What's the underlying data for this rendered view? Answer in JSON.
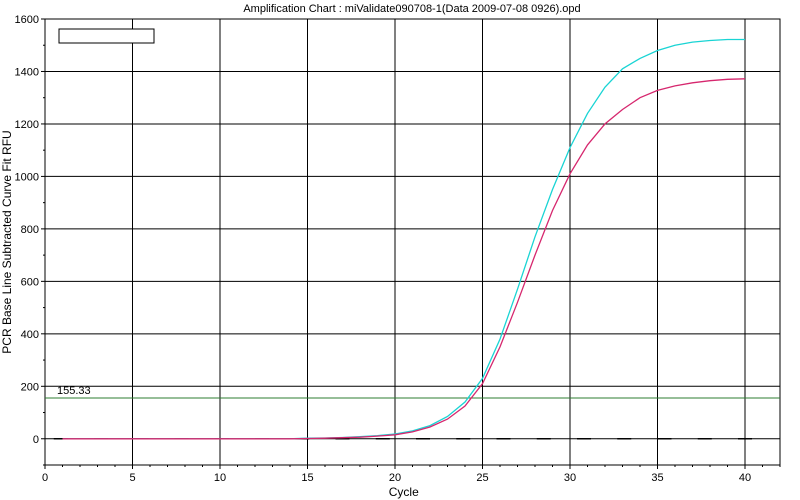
{
  "chart_data": {
    "type": "line",
    "title": "Amplification Chart : miValidate090708-1(Data 2009-07-08 0926).opd",
    "xlabel": "Cycle",
    "ylabel": "PCR Base Line Subtracted Curve Fit RFU",
    "xlim": [
      0,
      42
    ],
    "ylim": [
      -100,
      1600
    ],
    "x_ticks": [
      "0",
      "5",
      "10",
      "15",
      "20",
      "25",
      "30",
      "35",
      "40"
    ],
    "y_ticks": [
      "0",
      "200",
      "400",
      "600",
      "800",
      "1000",
      "1200",
      "1400",
      "1600"
    ],
    "grid": true,
    "threshold": {
      "label": "155.33",
      "value": 155.33,
      "color": "#2e7d32"
    },
    "series": [
      {
        "color": "#19d4d4",
        "x": [
          1,
          2,
          3,
          4,
          5,
          6,
          7,
          8,
          9,
          10,
          11,
          12,
          13,
          14,
          15,
          16,
          17,
          18,
          19,
          20,
          21,
          22,
          23,
          24,
          25,
          26,
          27,
          28,
          29,
          30,
          31,
          32,
          33,
          34,
          35,
          36,
          37,
          38,
          39,
          40
        ],
        "y": [
          0,
          0,
          0,
          0,
          0,
          0,
          0,
          0,
          0,
          0,
          0,
          0,
          0,
          0,
          2,
          3,
          5,
          8,
          12,
          18,
          30,
          50,
          85,
          140,
          230,
          380,
          570,
          770,
          950,
          1110,
          1240,
          1340,
          1410,
          1450,
          1480,
          1500,
          1512,
          1518,
          1522,
          1522
        ]
      },
      {
        "color": "#d6276e",
        "x": [
          1,
          2,
          3,
          4,
          5,
          6,
          7,
          8,
          9,
          10,
          11,
          12,
          13,
          14,
          15,
          16,
          17,
          18,
          19,
          20,
          21,
          22,
          23,
          24,
          25,
          26,
          27,
          28,
          29,
          30,
          31,
          32,
          33,
          34,
          35,
          36,
          37,
          38,
          39,
          40
        ],
        "y": [
          0,
          0,
          0,
          0,
          0,
          0,
          0,
          0,
          0,
          0,
          0,
          0,
          0,
          0,
          1,
          2,
          4,
          6,
          10,
          15,
          26,
          45,
          75,
          125,
          210,
          350,
          520,
          700,
          870,
          1010,
          1120,
          1200,
          1255,
          1300,
          1328,
          1345,
          1357,
          1365,
          1370,
          1372
        ]
      }
    ],
    "legend_box": true
  }
}
